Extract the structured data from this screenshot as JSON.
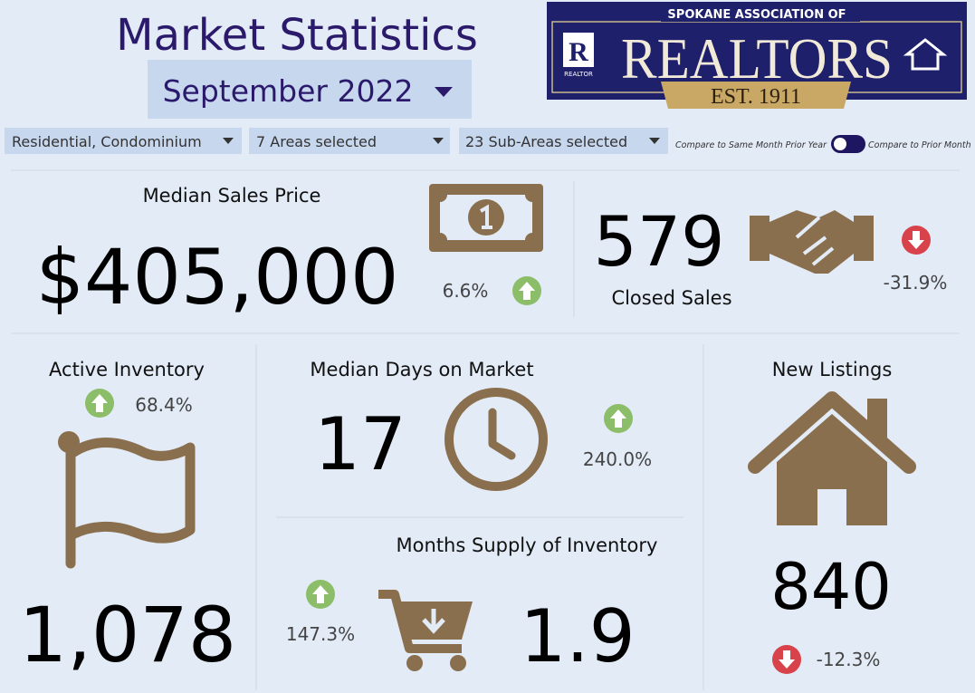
{
  "header": {
    "title": "Market Statistics",
    "period": "September 2022",
    "logo": {
      "top": "SPOKANE ASSOCIATION OF",
      "name": "REALTORS",
      "est": "EST. 1911",
      "badge": "REALTOR"
    }
  },
  "filters": [
    "Residential, Condominium",
    "7 Areas selected",
    "23 Sub-Areas selected"
  ],
  "toggle": {
    "left": "Compare to Same Month Prior Year",
    "right": "Compare to Prior Month"
  },
  "metrics": [
    {
      "label": "Median Sales Price",
      "value": "$405,000",
      "change": "6.6%",
      "direction": "up"
    },
    {
      "label": "Closed Sales",
      "value": "579",
      "change": "-31.9%",
      "direction": "down"
    },
    {
      "label": "Active Inventory",
      "value": "1,078",
      "change": "68.4%",
      "direction": "up"
    },
    {
      "label": "Median Days on Market",
      "value": "17",
      "change": "240.0%",
      "direction": "up"
    },
    {
      "label": "Months Supply of Inventory",
      "value": "1.9",
      "change": "147.3%",
      "direction": "up"
    },
    {
      "label": "New Listings",
      "value": "840",
      "change": "-12.3%",
      "direction": "down"
    }
  ]
}
